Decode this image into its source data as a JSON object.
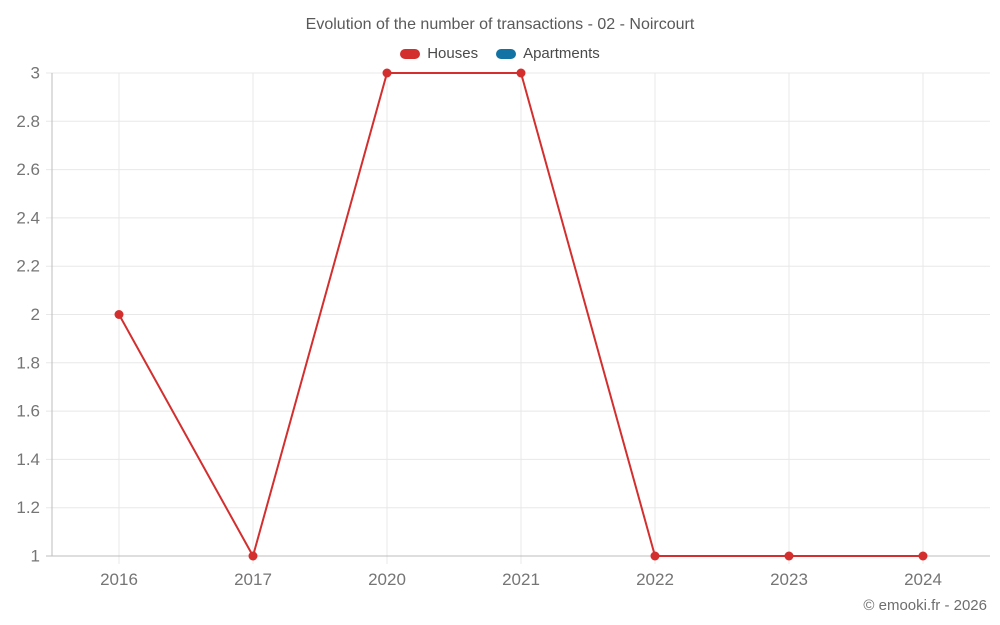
{
  "header": {
    "title": "Evolution of the number of transactions - 02 - Noircourt"
  },
  "footer": {
    "copyright": "© emooki.fr - 2026"
  },
  "colors": {
    "houses": "#d32f2f",
    "apartments": "#1272a3",
    "grid": "#e8e8e8",
    "axis": "#bdbdbd",
    "tick_text": "#757575",
    "title_text": "#595959",
    "legend_text": "#4a4a4a"
  },
  "chart_data": {
    "type": "line",
    "title": "Evolution of the number of transactions - 02 - Noircourt",
    "categories": [
      "2016",
      "2017",
      "2020",
      "2021",
      "2022",
      "2023",
      "2024"
    ],
    "series": [
      {
        "name": "Houses",
        "color": "#d32f2f",
        "values": [
          2,
          1,
          3,
          3,
          1,
          1,
          1
        ]
      },
      {
        "name": "Apartments",
        "color": "#1272a3",
        "values": []
      }
    ],
    "xlabel": "",
    "ylabel": "",
    "ylim": [
      1,
      3
    ],
    "yticks": [
      1,
      1.2,
      1.4,
      1.6,
      1.8,
      2,
      2.2,
      2.4,
      2.6,
      2.8,
      3
    ],
    "grid": true,
    "legend_position": "top",
    "marker_radius": 4.5,
    "line_width": 2
  }
}
